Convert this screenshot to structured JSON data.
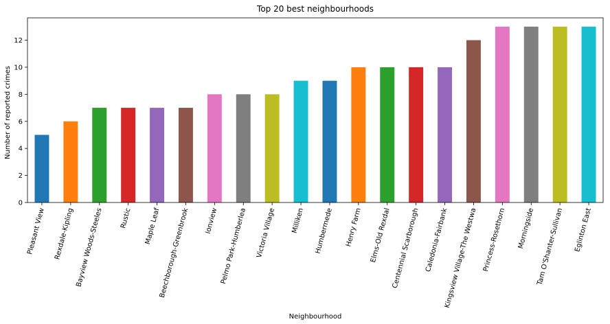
{
  "chart_data": {
    "type": "bar",
    "title": "Top 20 best neighbourhoods",
    "xlabel": "Neighbourhood",
    "ylabel": "Number of reported crimes",
    "ylim": [
      0,
      13.65
    ],
    "yticks": [
      0,
      2,
      4,
      6,
      8,
      10,
      12
    ],
    "grid": false,
    "legend": "none",
    "categories": [
      "Pleasant View",
      "Rexdale-Kipling",
      "Bayview Woods-Steeles",
      "Rustic",
      "Maple Leaf",
      "Beechborough-Greenbrook",
      "Ionview",
      "Pelmo Park-Humberlea",
      "Victoria Village",
      "Milliken",
      "Humbermede",
      "Henry Farm",
      "Elms-Old Rexdal",
      "Centennial Scarborough",
      "Caledonia-Fairbank",
      "Kingsview Village-The Westwa",
      "Princess-Rosethorn",
      "Morningside",
      "Tam O'Shanter-Sullivan",
      "Eglinton East"
    ],
    "values": [
      5,
      6,
      7,
      7,
      7,
      7,
      8,
      8,
      8,
      9,
      9,
      10,
      10,
      10,
      10,
      12,
      13,
      13,
      13,
      13
    ],
    "colors": [
      "#1f77b4",
      "#ff7f0e",
      "#2ca02c",
      "#d62728",
      "#9467bd",
      "#8c564b",
      "#e377c2",
      "#7f7f7f",
      "#bcbd22",
      "#17becf"
    ]
  }
}
